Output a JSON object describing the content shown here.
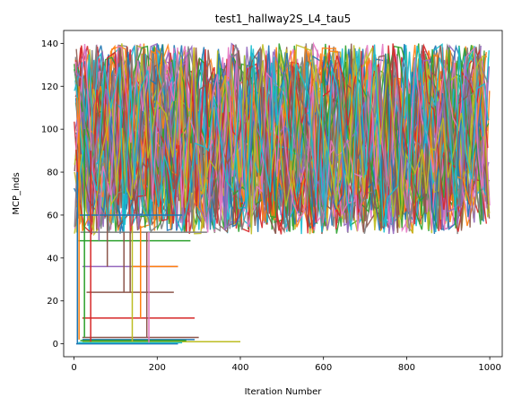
{
  "chart_data": {
    "type": "line",
    "title": "test1_hallway2S_L4_tau5",
    "xlabel": "Iteration Number",
    "ylabel": "MCP_inds",
    "xlim": [
      -25,
      1030
    ],
    "ylim": [
      -6,
      146
    ],
    "xticks": [
      0,
      200,
      400,
      600,
      800,
      1000
    ],
    "yticks": [
      0,
      20,
      40,
      60,
      80,
      100,
      120,
      140
    ],
    "grid": false,
    "legend": "none",
    "palette": [
      "#1f77b4",
      "#ff7f0e",
      "#2ca02c",
      "#d62728",
      "#9467bd",
      "#8c564b",
      "#e377c2",
      "#7f7f7f",
      "#bcbd22",
      "#17becf"
    ],
    "oscillating_band": {
      "x_range": [
        0,
        1000
      ],
      "y_range": [
        51,
        140
      ],
      "series_count": 60
    },
    "flat_segments": [
      {
        "y": 60,
        "x_start": 10,
        "x_end": 260,
        "color": "#1f77b4"
      },
      {
        "y": 52,
        "x_start": 15,
        "x_end": 320,
        "color": "#7f7f7f"
      },
      {
        "y": 48,
        "x_start": 10,
        "x_end": 280,
        "color": "#2ca02c"
      },
      {
        "y": 36,
        "x_start": 20,
        "x_end": 250,
        "color": "#9467bd"
      },
      {
        "y": 36,
        "x_start": 140,
        "x_end": 250,
        "color": "#ff7f0e"
      },
      {
        "y": 24,
        "x_start": 30,
        "x_end": 240,
        "color": "#8c564b"
      },
      {
        "y": 12,
        "x_start": 20,
        "x_end": 290,
        "color": "#d62728"
      },
      {
        "y": 3,
        "x_start": 20,
        "x_end": 300,
        "color": "#8c564b"
      },
      {
        "y": 2,
        "x_start": 20,
        "x_end": 290,
        "color": "#1f77b4"
      },
      {
        "y": 1,
        "x_start": 20,
        "x_end": 400,
        "color": "#bcbd22"
      },
      {
        "y": 0,
        "x_start": 5,
        "x_end": 250,
        "color": "#1f77b4"
      },
      {
        "y": 0.5,
        "x_start": 10,
        "x_end": 260,
        "color": "#17becf"
      },
      {
        "y": 1.5,
        "x_start": 15,
        "x_end": 270,
        "color": "#2ca02c"
      }
    ],
    "drop_lines": [
      {
        "x": 8,
        "y_top": 80,
        "y_bottom": 0,
        "color": "#1f77b4"
      },
      {
        "x": 12,
        "y_top": 120,
        "y_bottom": 2,
        "color": "#ff7f0e"
      },
      {
        "x": 25,
        "y_top": 100,
        "y_bottom": 3,
        "color": "#2ca02c"
      },
      {
        "x": 40,
        "y_top": 90,
        "y_bottom": 1,
        "color": "#d62728"
      },
      {
        "x": 60,
        "y_top": 70,
        "y_bottom": 48,
        "color": "#9467bd"
      },
      {
        "x": 80,
        "y_top": 60,
        "y_bottom": 36,
        "color": "#8c564b"
      },
      {
        "x": 120,
        "y_top": 52,
        "y_bottom": 24,
        "color": "#8c564b"
      },
      {
        "x": 135,
        "y_top": 52,
        "y_bottom": 24,
        "color": "#8c564b"
      },
      {
        "x": 140,
        "y_top": 55,
        "y_bottom": 1,
        "color": "#bcbd22"
      },
      {
        "x": 160,
        "y_top": 55,
        "y_bottom": 12,
        "color": "#ff7f0e"
      },
      {
        "x": 175,
        "y_top": 52,
        "y_bottom": 3,
        "color": "#8c564b"
      },
      {
        "x": 180,
        "y_top": 52,
        "y_bottom": 0.5,
        "color": "#e377c2"
      }
    ]
  }
}
